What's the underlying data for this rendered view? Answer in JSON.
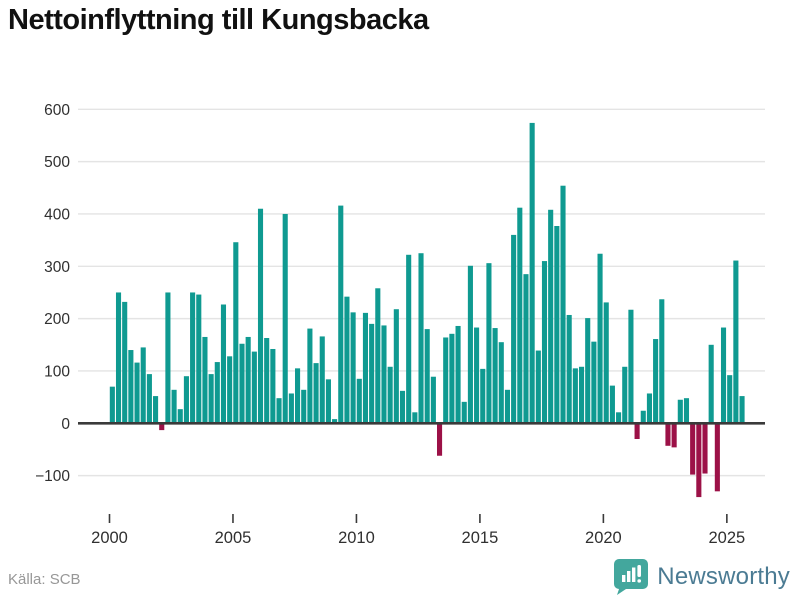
{
  "title": "Nettoinflyttning till Kungsbacka",
  "source": "Källa: SCB",
  "branding": {
    "name": "Newsworthy",
    "icon": "newsworthy-bar-chart-bubble-icon"
  },
  "colors": {
    "positive_bar": "#0f9a91",
    "negative_bar": "#9c1147",
    "gridline": "#e4e4e4",
    "zero_axis": "#3a3a3a",
    "tick_mark": "#3a3a3a",
    "axis_label": "#303030",
    "title_text": "#111111",
    "source_text": "#979797",
    "brand_icon": "#43a79d",
    "brand_text": "#4b7b93"
  },
  "chart_data": {
    "type": "bar",
    "title": "Nettoinflyttning till Kungsbacka",
    "xlabel": "",
    "ylabel": "",
    "frequency": "quarterly",
    "start_period": "2000Q1",
    "end_period": "2025Q3",
    "ylim": [
      -155,
      625
    ],
    "grid": true,
    "legend_position": "none",
    "y_tick_values": [
      600,
      500,
      400,
      300,
      200,
      100,
      0,
      -100
    ],
    "y_tick_labels": [
      "600",
      "500",
      "400",
      "300",
      "200",
      "100",
      "0",
      "−100"
    ],
    "x_tick_labels": [
      "2000",
      "2005",
      "2010",
      "2015",
      "2020",
      "2025"
    ],
    "x_tick_quarter_offsets": [
      0,
      20,
      40,
      60,
      80,
      100
    ],
    "values": [
      70,
      250,
      232,
      140,
      116,
      145,
      94,
      52,
      -13,
      250,
      64,
      27,
      90,
      250,
      246,
      165,
      94,
      117,
      227,
      128,
      346,
      152,
      165,
      137,
      410,
      163,
      142,
      48,
      400,
      57,
      105,
      64,
      181,
      115,
      166,
      84,
      8,
      416,
      242,
      212,
      85,
      211,
      190,
      258,
      187,
      108,
      218,
      62,
      322,
      21,
      325,
      180,
      89,
      -62,
      164,
      171,
      186,
      41,
      301,
      183,
      104,
      306,
      182,
      155,
      64,
      360,
      412,
      285,
      574,
      139,
      310,
      408,
      377,
      454,
      207,
      105,
      108,
      201,
      156,
      324,
      231,
      72,
      21,
      108,
      217,
      -30,
      24,
      57,
      161,
      237,
      -43,
      -46,
      45,
      48,
      -98,
      -141,
      -96,
      150,
      -130,
      183,
      92,
      311,
      52
    ]
  }
}
